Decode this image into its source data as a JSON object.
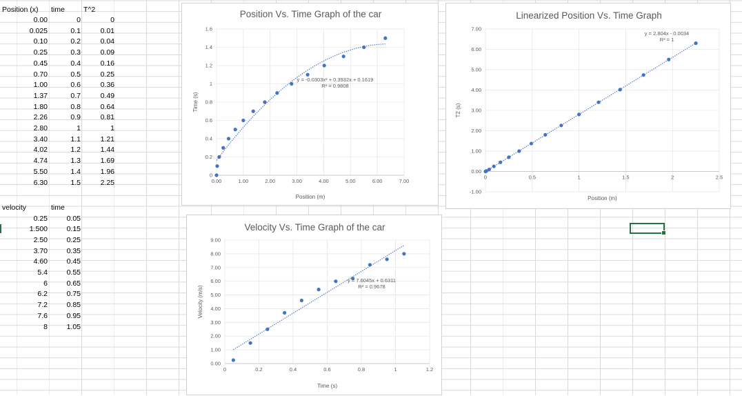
{
  "table1": {
    "headers": [
      "Position (x)",
      "time",
      "T^2"
    ],
    "rows": [
      [
        "0.00",
        "0",
        "0"
      ],
      [
        "0.025",
        "0.1",
        "0.01"
      ],
      [
        "0.10",
        "0.2",
        "0.04"
      ],
      [
        "0.25",
        "0.3",
        "0.09"
      ],
      [
        "0.45",
        "0.4",
        "0.16"
      ],
      [
        "0.70",
        "0.5",
        "0.25"
      ],
      [
        "1.00",
        "0.6",
        "0.36"
      ],
      [
        "1.37",
        "0.7",
        "0.49"
      ],
      [
        "1.80",
        "0.8",
        "0.64"
      ],
      [
        "2.26",
        "0.9",
        "0.81"
      ],
      [
        "2.80",
        "1",
        "1"
      ],
      [
        "3.40",
        "1.1",
        "1.21"
      ],
      [
        "4.02",
        "1.2",
        "1.44"
      ],
      [
        "4.74",
        "1.3",
        "1.69"
      ],
      [
        "5.50",
        "1.4",
        "1.96"
      ],
      [
        "6.30",
        "1.5",
        "2.25"
      ]
    ]
  },
  "table2": {
    "headers": [
      "velocity",
      "time"
    ],
    "rows": [
      [
        "0.25",
        "0.05"
      ],
      [
        "1.500",
        "0.15"
      ],
      [
        "2.50",
        "0.25"
      ],
      [
        "3.70",
        "0.35"
      ],
      [
        "4.60",
        "0.45"
      ],
      [
        "5.4",
        "0.55"
      ],
      [
        "6",
        "0.65"
      ],
      [
        "6.2",
        "0.75"
      ],
      [
        "7.2",
        "0.85"
      ],
      [
        "7.6",
        "0.95"
      ],
      [
        "8",
        "1.05"
      ]
    ]
  },
  "colors": {
    "marker": "#4472c4",
    "selection": "#217346",
    "gridline": "#d9d9d9"
  },
  "chart_data": [
    {
      "type": "scatter",
      "title": "Position Vs. Time Graph of the car",
      "xlabel": "Position (m)",
      "ylabel": "Time (s)",
      "xlim": [
        0,
        7
      ],
      "ylim": [
        0,
        1.6
      ],
      "xticks": [
        "0.00",
        "1.00",
        "2.00",
        "3.00",
        "4.00",
        "5.00",
        "6.00",
        "7.00"
      ],
      "yticks": [
        "0",
        "0.2",
        "0.4",
        "0.6",
        "0.8",
        "1",
        "1.2",
        "1.4",
        "1.6"
      ],
      "x": [
        0.0,
        0.025,
        0.1,
        0.25,
        0.45,
        0.7,
        1.0,
        1.37,
        1.8,
        2.26,
        2.8,
        3.4,
        4.02,
        4.74,
        5.5,
        6.3
      ],
      "y": [
        0,
        0.1,
        0.2,
        0.3,
        0.4,
        0.5,
        0.6,
        0.7,
        0.8,
        0.9,
        1.0,
        1.1,
        1.2,
        1.3,
        1.4,
        1.5
      ],
      "trendline": {
        "kind": "poly2",
        "coef": [
          -0.0303,
          0.3932,
          0.1619
        ]
      },
      "equation": "y = -0.0303x² + 0.3932x + 0.1619",
      "r2": "R² = 0.9808",
      "grid": true
    },
    {
      "type": "scatter",
      "title": "Linearized Position Vs. Time Graph",
      "xlabel": "Position (m)",
      "ylabel": "T2 (s)",
      "xlim": [
        0,
        2.5
      ],
      "ylim": [
        -1,
        7
      ],
      "xticks": [
        "0",
        "0.5",
        "1",
        "1.5",
        "2",
        "2.5"
      ],
      "yticks": [
        "-1.00",
        "0.00",
        "1.00",
        "2.00",
        "3.00",
        "4.00",
        "5.00",
        "6.00",
        "7.00"
      ],
      "x": [
        0,
        0.01,
        0.04,
        0.09,
        0.16,
        0.25,
        0.36,
        0.49,
        0.64,
        0.81,
        1,
        1.21,
        1.44,
        1.69,
        1.96,
        2.25
      ],
      "y": [
        0.0,
        0.025,
        0.1,
        0.25,
        0.45,
        0.7,
        1.0,
        1.37,
        1.8,
        2.26,
        2.8,
        3.4,
        4.02,
        4.74,
        5.5,
        6.3
      ],
      "trendline": {
        "kind": "linear",
        "coef": [
          2.804,
          -0.0034
        ]
      },
      "equation": "y = 2.804x - 0.0034",
      "r2": "R² = 1",
      "grid": true
    },
    {
      "type": "scatter",
      "title": "Velocity Vs. Time Graph of the car",
      "xlabel": "Time (s)",
      "ylabel": "Velocity (m/s)",
      "xlim": [
        0,
        1.2
      ],
      "ylim": [
        0,
        9
      ],
      "xticks": [
        "0",
        "0.2",
        "0.4",
        "0.6",
        "0.8",
        "1",
        "1.2"
      ],
      "yticks": [
        "0.00",
        "1.00",
        "2.00",
        "3.00",
        "4.00",
        "5.00",
        "6.00",
        "7.00",
        "8.00",
        "9.00"
      ],
      "x": [
        0.05,
        0.15,
        0.25,
        0.35,
        0.45,
        0.55,
        0.65,
        0.75,
        0.85,
        0.95,
        1.05
      ],
      "y": [
        0.25,
        1.5,
        2.5,
        3.7,
        4.6,
        5.4,
        6,
        6.2,
        7.2,
        7.6,
        8
      ],
      "trendline": {
        "kind": "linear",
        "coef": [
          7.6045,
          0.6311
        ]
      },
      "equation": "y = 7.6045x + 0.6311",
      "r2": "R² = 0.9678",
      "grid": true
    }
  ]
}
